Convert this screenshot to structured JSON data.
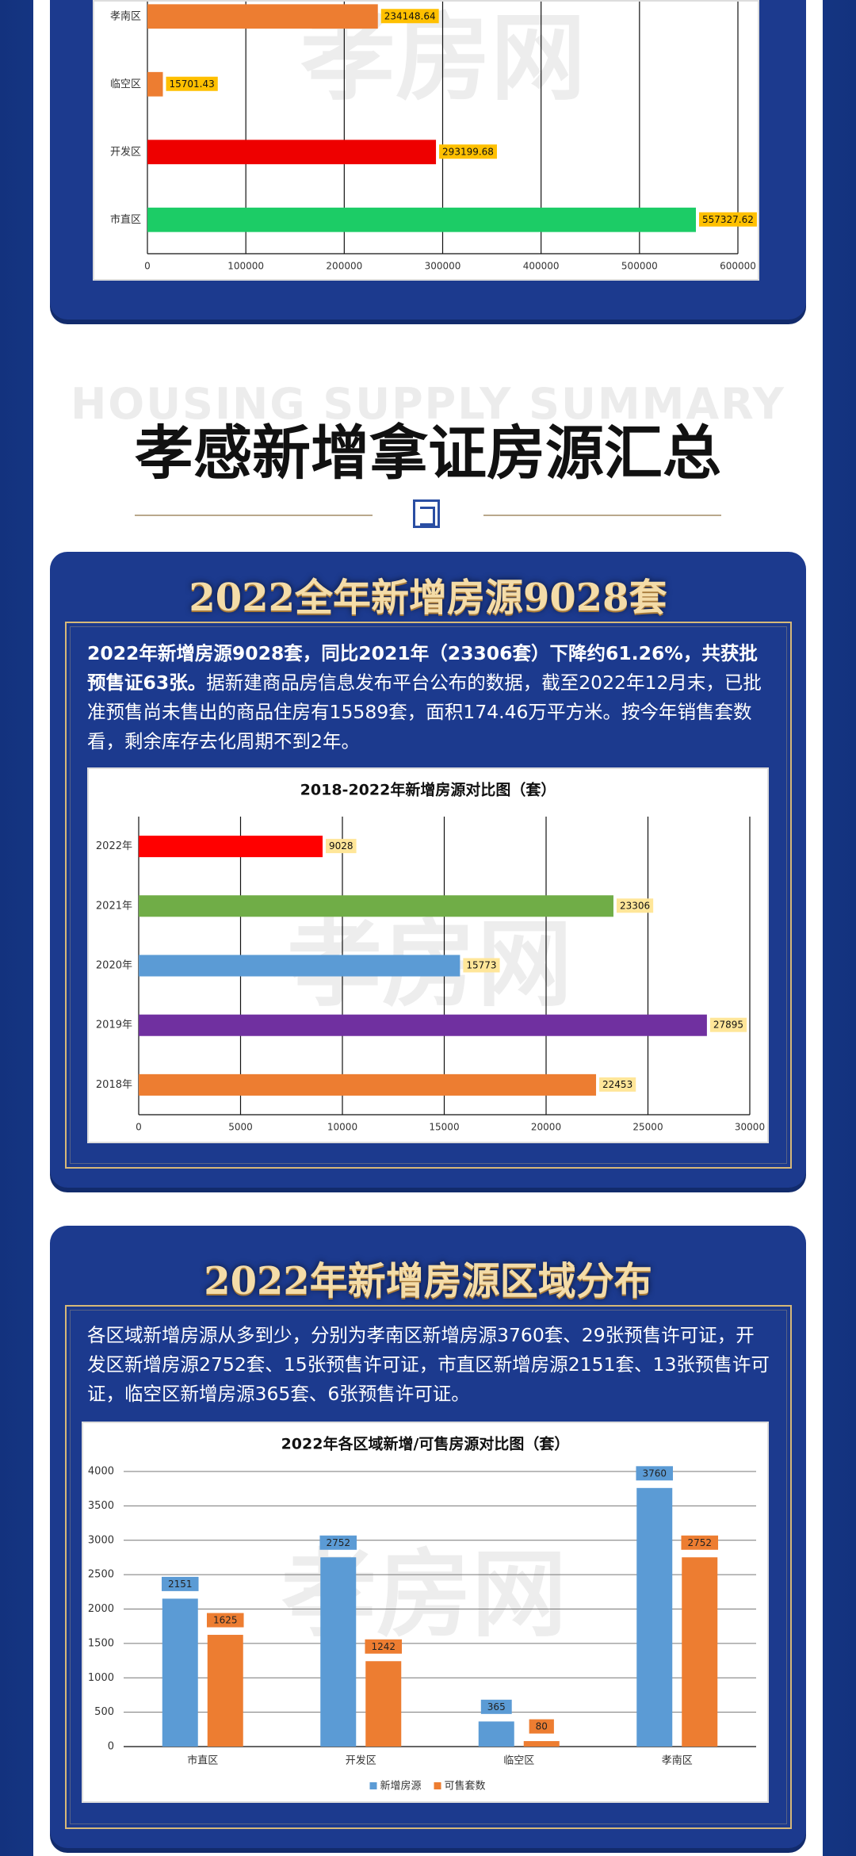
{
  "watermark": "孝房网",
  "heading": {
    "english": "HOUSING SUPPLY SUMMARY",
    "title": "孝感新增拿证房源汇总"
  },
  "sections": [
    {
      "title": "2022全年新增房源9028套",
      "text_bold": "2022年新增房源9028套，同比2021年（23306套）下降约61.26%，共获批预售证63张。",
      "text": "据新建商品房信息发布平台公布的数据，截至2022年12月末，已批准预售尚未售出的商品住房有15589套，面积174.46万平方米。按今年销售套数看，剩余库存去化周期不到2年。"
    },
    {
      "title": "2022年新增房源区域分布",
      "text": "各区域新增房源从多到少，分别为孝南区新增房源3760套、29张预售许可证，开发区新增房源2752套、15张预售许可证，市直区新增房源2151套、13张预售许可证，临空区新增房源365套、6张预售许可证。"
    }
  ],
  "chart_data": [
    {
      "type": "bar",
      "horizontal": true,
      "categories": [
        "孝南区",
        "临空区",
        "开发区",
        "市直区"
      ],
      "values": [
        234148.64,
        15701.43,
        293199.68,
        557327.62
      ],
      "colors": [
        "#ed7d31",
        "#ed7d31",
        "#ee0000",
        "#1ccc66"
      ],
      "label_color": "#ffc000",
      "xlim": [
        0,
        600000
      ],
      "xticks": [
        0,
        100000,
        200000,
        300000,
        400000,
        500000,
        600000
      ],
      "grid": true
    },
    {
      "type": "bar",
      "horizontal": true,
      "title": "2018-2022年新增房源对比图（套）",
      "categories": [
        "2022年",
        "2021年",
        "2020年",
        "2019年",
        "2018年"
      ],
      "values": [
        9028,
        23306,
        15773,
        27895,
        22453
      ],
      "colors": [
        "#ff0000",
        "#70ad47",
        "#5b9bd5",
        "#7030a0",
        "#ed7d31"
      ],
      "label_color": "#ffe699",
      "xlim": [
        0,
        30000
      ],
      "xticks": [
        0,
        5000,
        10000,
        15000,
        20000,
        25000,
        30000
      ],
      "grid": true
    },
    {
      "type": "bar",
      "horizontal": false,
      "title": "2022年各区域新增/可售房源对比图（套）",
      "categories": [
        "市直区",
        "开发区",
        "临空区",
        "孝南区"
      ],
      "series": [
        {
          "name": "新增房源",
          "color": "#5b9bd5",
          "values": [
            2151,
            2752,
            365,
            3760
          ]
        },
        {
          "name": "可售套数",
          "color": "#ed7d31",
          "values": [
            1625,
            1242,
            80,
            2752
          ]
        }
      ],
      "ylim": [
        0,
        4000
      ],
      "yticks": [
        0,
        500,
        1000,
        1500,
        2000,
        2500,
        3000,
        3500,
        4000
      ],
      "grid": true,
      "legend": "bottom"
    }
  ]
}
